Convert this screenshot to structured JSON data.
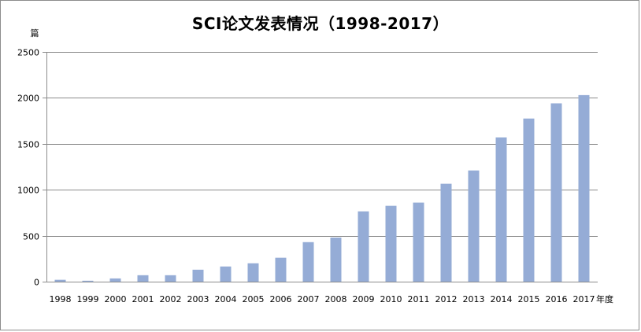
{
  "chart_data": {
    "type": "bar",
    "title": "SCI论文发表情况（1998-2017）",
    "ylabel": "篇",
    "xlabel": "年度",
    "categories": [
      "1998",
      "1999",
      "2000",
      "2001",
      "2002",
      "2003",
      "2004",
      "2005",
      "2006",
      "2007",
      "2008",
      "2009",
      "2010",
      "2011",
      "2012",
      "2013",
      "2014",
      "2015",
      "2016",
      "2017"
    ],
    "values": [
      20,
      10,
      35,
      70,
      70,
      130,
      165,
      200,
      260,
      430,
      480,
      765,
      825,
      860,
      1065,
      1210,
      1570,
      1775,
      1940,
      2030
    ],
    "ylim": [
      0,
      2500
    ],
    "yticks": [
      0,
      500,
      1000,
      1500,
      2000,
      2500
    ],
    "grid": true,
    "bar_color": "#95acd6",
    "grid_color": "#8c8c8c"
  }
}
